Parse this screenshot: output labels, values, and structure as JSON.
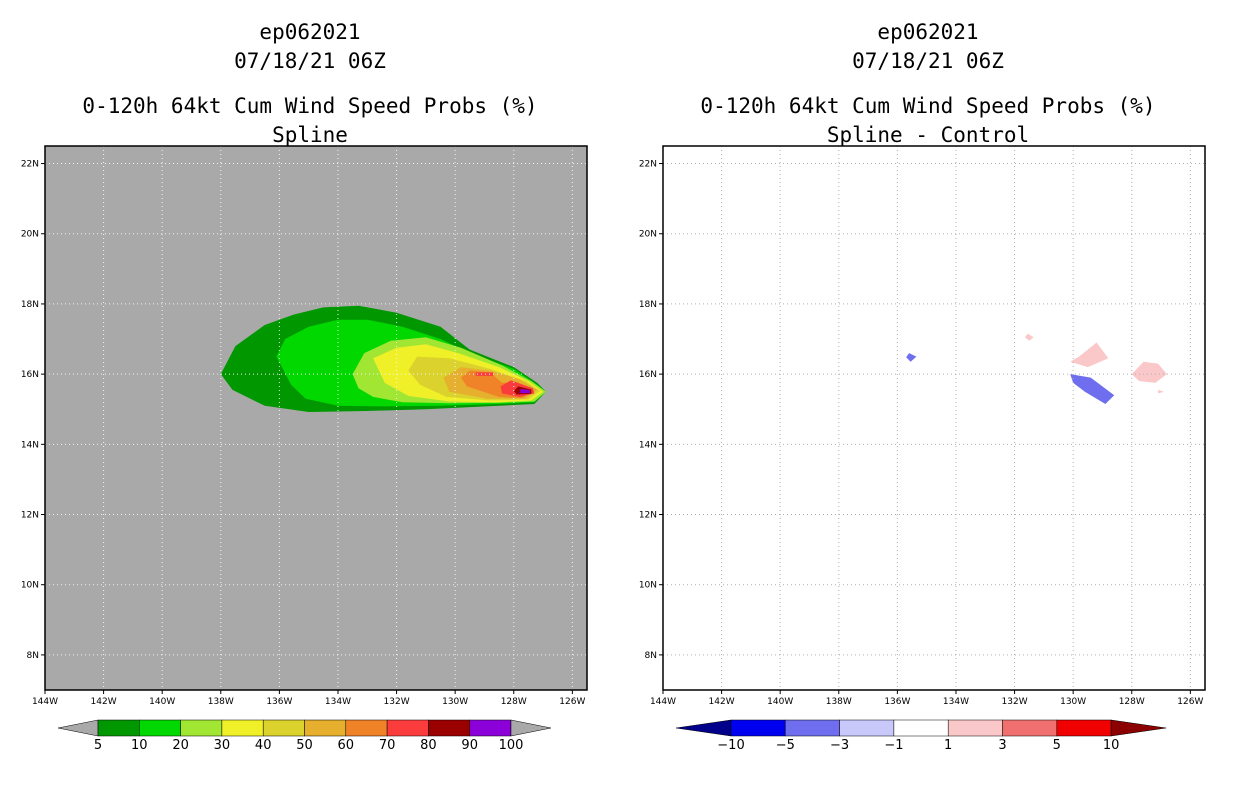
{
  "chart_data": [
    {
      "type": "filled-contour-map",
      "storm_id": "ep062021",
      "datetime": "07/18/21 06Z",
      "title": "0-120h 64kt Cum Wind Speed Probs (%)",
      "subtitle": "Spline",
      "x_ticks": [
        "144W",
        "142W",
        "140W",
        "138W",
        "136W",
        "134W",
        "132W",
        "130W",
        "128W",
        "126W"
      ],
      "y_ticks": [
        "8N",
        "10N",
        "12N",
        "14N",
        "16N",
        "18N",
        "20N",
        "22N"
      ],
      "xlim": [
        -144,
        -125.5
      ],
      "ylim": [
        7,
        22.5
      ],
      "grid": true,
      "background": "#a9a9a9",
      "colorbar": {
        "levels": [
          "5",
          "10",
          "20",
          "30",
          "40",
          "50",
          "60",
          "70",
          "80",
          "90",
          "100"
        ],
        "colors": [
          "#009700",
          "#00d800",
          "#a0e632",
          "#f0f028",
          "#dcd22d",
          "#e6af2d",
          "#f08228",
          "#fa3c3c",
          "#9b0000",
          "#8b00d8"
        ]
      },
      "contours": [
        {
          "level": 5,
          "points": [
            [
              -138.0,
              16.0
            ],
            [
              -137.5,
              16.8
            ],
            [
              -136.5,
              17.4
            ],
            [
              -135.5,
              17.7
            ],
            [
              -134.5,
              17.9
            ],
            [
              -133.3,
              17.95
            ],
            [
              -132.0,
              17.75
            ],
            [
              -130.5,
              17.35
            ],
            [
              -129.5,
              16.7
            ],
            [
              -128.0,
              16.2
            ],
            [
              -127.2,
              15.75
            ],
            [
              -126.9,
              15.5
            ],
            [
              -127.3,
              15.15
            ],
            [
              -128.5,
              15.1
            ],
            [
              -131.0,
              15.0
            ],
            [
              -133.0,
              14.95
            ],
            [
              -135.0,
              14.92
            ],
            [
              -136.5,
              15.1
            ],
            [
              -137.6,
              15.55
            ]
          ]
        },
        {
          "level": 10,
          "points": [
            [
              -136.1,
              16.5
            ],
            [
              -135.8,
              17.0
            ],
            [
              -135.0,
              17.35
            ],
            [
              -134.0,
              17.55
            ],
            [
              -133.0,
              17.55
            ],
            [
              -131.8,
              17.35
            ],
            [
              -130.5,
              17.0
            ],
            [
              -129.5,
              16.6
            ],
            [
              -128.0,
              16.15
            ],
            [
              -127.2,
              15.7
            ],
            [
              -126.9,
              15.5
            ],
            [
              -127.3,
              15.2
            ],
            [
              -128.5,
              15.15
            ],
            [
              -130.5,
              15.1
            ],
            [
              -132.5,
              15.08
            ],
            [
              -134.0,
              15.1
            ],
            [
              -135.1,
              15.3
            ],
            [
              -135.6,
              15.7
            ]
          ]
        },
        {
          "level": 20,
          "points": [
            [
              -133.5,
              16.0
            ],
            [
              -133.1,
              16.6
            ],
            [
              -132.2,
              16.95
            ],
            [
              -131.0,
              17.05
            ],
            [
              -129.8,
              16.75
            ],
            [
              -128.4,
              16.25
            ],
            [
              -127.4,
              15.8
            ],
            [
              -126.9,
              15.5
            ],
            [
              -127.3,
              15.22
            ],
            [
              -128.5,
              15.18
            ],
            [
              -130.2,
              15.17
            ],
            [
              -131.8,
              15.2
            ],
            [
              -132.8,
              15.35
            ],
            [
              -133.3,
              15.6
            ]
          ]
        },
        {
          "level": 30,
          "points": [
            [
              -132.8,
              16.45
            ],
            [
              -132.0,
              16.75
            ],
            [
              -131.0,
              16.85
            ],
            [
              -129.9,
              16.6
            ],
            [
              -128.5,
              16.2
            ],
            [
              -127.5,
              15.8
            ],
            [
              -127.0,
              15.5
            ],
            [
              -127.4,
              15.25
            ],
            [
              -128.6,
              15.2
            ],
            [
              -130.2,
              15.22
            ],
            [
              -131.6,
              15.38
            ],
            [
              -132.4,
              15.75
            ]
          ]
        },
        {
          "level": 40,
          "points": [
            [
              -131.3,
              16.5
            ],
            [
              -130.2,
              16.45
            ],
            [
              -128.8,
              16.15
            ],
            [
              -127.6,
              15.8
            ],
            [
              -127.1,
              15.52
            ],
            [
              -127.5,
              15.28
            ],
            [
              -128.8,
              15.25
            ],
            [
              -130.3,
              15.35
            ],
            [
              -131.2,
              15.7
            ],
            [
              -131.6,
              16.1
            ]
          ]
        },
        {
          "level": 50,
          "points": [
            [
              -129.8,
              16.2
            ],
            [
              -128.8,
              16.1
            ],
            [
              -127.8,
              15.85
            ],
            [
              -127.2,
              15.55
            ],
            [
              -127.6,
              15.3
            ],
            [
              -128.9,
              15.3
            ],
            [
              -130.2,
              15.5
            ],
            [
              -130.4,
              15.9
            ]
          ]
        },
        {
          "level": 60,
          "points": [
            [
              -129.5,
              16.1
            ],
            [
              -128.8,
              16.05
            ],
            [
              -128.4,
              15.75
            ],
            [
              -127.9,
              15.78
            ],
            [
              -127.3,
              15.55
            ],
            [
              -127.7,
              15.32
            ],
            [
              -128.5,
              15.35
            ],
            [
              -129.6,
              15.65
            ],
            [
              -129.8,
              15.9
            ]
          ]
        },
        {
          "level": 70,
          "points": [
            [
              -128.1,
              15.82
            ],
            [
              -127.35,
              15.6
            ],
            [
              -127.3,
              15.45
            ],
            [
              -127.8,
              15.35
            ],
            [
              -128.4,
              15.45
            ],
            [
              -128.45,
              15.65
            ]
          ]
        },
        {
          "level": 80,
          "points": [
            [
              -127.85,
              15.65
            ],
            [
              -127.4,
              15.56
            ],
            [
              -127.4,
              15.44
            ],
            [
              -127.9,
              15.42
            ],
            [
              -128.0,
              15.52
            ]
          ]
        },
        {
          "level": 90,
          "points": [
            [
              -127.75,
              15.58
            ],
            [
              -127.45,
              15.54
            ],
            [
              -127.45,
              15.46
            ],
            [
              -127.8,
              15.46
            ]
          ]
        },
        {
          "level": 70,
          "points": [
            [
              -129.3,
              16.05
            ],
            [
              -128.7,
              16.05
            ],
            [
              -128.7,
              15.95
            ],
            [
              -129.3,
              15.95
            ]
          ]
        }
      ]
    },
    {
      "type": "filled-contour-map",
      "storm_id": "ep062021",
      "datetime": "07/18/21 06Z",
      "title": "0-120h 64kt Cum Wind Speed Probs (%)",
      "subtitle": "Spline - Control",
      "x_ticks": [
        "144W",
        "142W",
        "140W",
        "138W",
        "136W",
        "134W",
        "132W",
        "130W",
        "128W",
        "126W"
      ],
      "y_ticks": [
        "8N",
        "10N",
        "12N",
        "14N",
        "16N",
        "18N",
        "20N",
        "22N"
      ],
      "xlim": [
        -144,
        -125.5
      ],
      "ylim": [
        7,
        22.5
      ],
      "grid": true,
      "background": "#ffffff",
      "colorbar": {
        "levels": [
          "-10",
          "-5",
          "-3",
          "-1",
          "1",
          "3",
          "5",
          "10"
        ],
        "colors": [
          "#00008b",
          "#0000f0",
          "#6e6eee",
          "#c8c8fa",
          "#ffffff",
          "#fac8c8",
          "#f07070",
          "#f00000",
          "#8b0000"
        ]
      },
      "contours": [
        {
          "level": -3,
          "points": [
            [
              -135.6,
              16.6
            ],
            [
              -135.35,
              16.5
            ],
            [
              -135.55,
              16.35
            ],
            [
              -135.7,
              16.48
            ]
          ]
        },
        {
          "level": 3,
          "points": [
            [
              -131.55,
              17.15
            ],
            [
              -131.35,
              17.05
            ],
            [
              -131.5,
              16.95
            ],
            [
              -131.65,
              17.05
            ]
          ]
        },
        {
          "level": 3,
          "points": [
            [
              -129.8,
              16.5
            ],
            [
              -129.2,
              16.9
            ],
            [
              -128.8,
              16.45
            ],
            [
              -129.5,
              16.2
            ],
            [
              -130.1,
              16.35
            ]
          ]
        },
        {
          "level": -3,
          "points": [
            [
              -130.1,
              16.0
            ],
            [
              -129.4,
              15.9
            ],
            [
              -128.6,
              15.4
            ],
            [
              -128.9,
              15.15
            ],
            [
              -129.6,
              15.5
            ],
            [
              -130.0,
              15.75
            ]
          ]
        },
        {
          "level": 3,
          "points": [
            [
              -128.0,
              16.0
            ],
            [
              -127.6,
              16.35
            ],
            [
              -127.1,
              16.3
            ],
            [
              -126.8,
              16.0
            ],
            [
              -127.2,
              15.75
            ],
            [
              -127.75,
              15.8
            ]
          ]
        },
        {
          "level": 3,
          "points": [
            [
              -127.1,
              15.55
            ],
            [
              -126.9,
              15.5
            ],
            [
              -127.1,
              15.45
            ]
          ]
        }
      ]
    }
  ]
}
